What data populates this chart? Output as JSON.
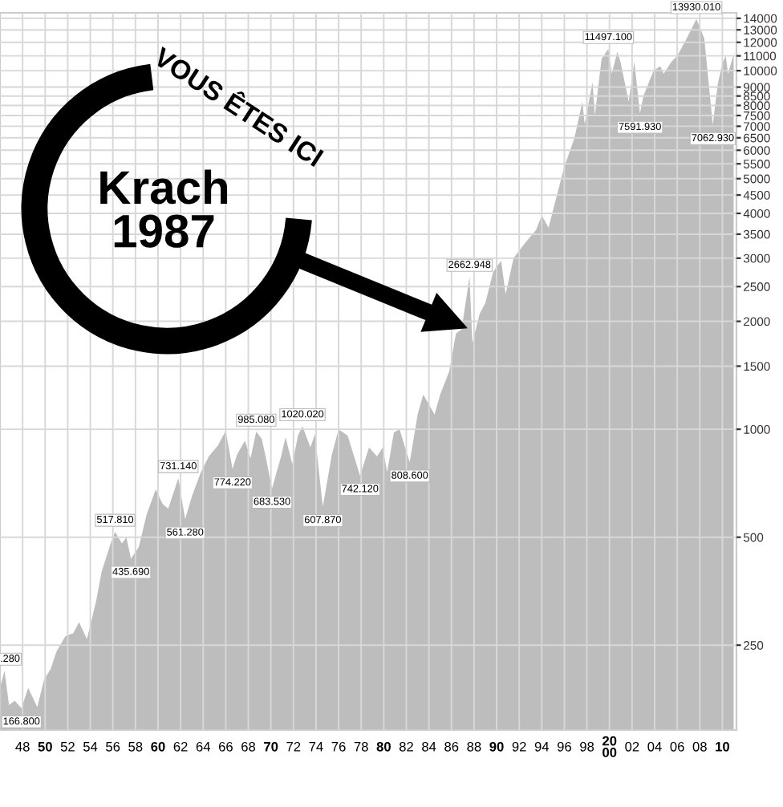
{
  "chart_data": {
    "type": "area",
    "log": "y",
    "grid": true,
    "x": [
      1946.0,
      1946.4,
      1946.8,
      1947.3,
      1947.9,
      1948.5,
      1949.3,
      1949.9,
      1950.5,
      1951.0,
      1951.8,
      1952.5,
      1953.0,
      1953.7,
      1954.5,
      1955.0,
      1955.8,
      1956.2,
      1956.8,
      1957.2,
      1957.6,
      1958.3,
      1959.0,
      1959.8,
      1960.4,
      1960.9,
      1961.8,
      1962.4,
      1963.0,
      1963.8,
      1964.5,
      1965.3,
      1966.0,
      1966.6,
      1967.0,
      1967.7,
      1968.2,
      1968.7,
      1969.2,
      1969.6,
      1970.1,
      1970.9,
      1971.3,
      1971.9,
      1972.4,
      1972.8,
      1973.5,
      1973.9,
      1974.6,
      1975.4,
      1976.0,
      1976.8,
      1977.9,
      1978.7,
      1979.4,
      1979.9,
      1980.3,
      1980.9,
      1981.4,
      1982.3,
      1983.0,
      1983.5,
      1984.5,
      1985.0,
      1985.8,
      1986.4,
      1986.9,
      1987.6,
      1987.85,
      1988.5,
      1989.0,
      1989.7,
      1990.4,
      1990.8,
      1991.5,
      1992.5,
      1993.5,
      1994.0,
      1994.6,
      1995.5,
      1996.0,
      1996.9,
      1997.6,
      1997.8,
      1998.5,
      1998.7,
      1999.3,
      1999.9,
      2000.2,
      2000.7,
      2001.0,
      2001.7,
      2002.2,
      2002.7,
      2003.0,
      2003.9,
      2004.5,
      2004.8,
      2005.5,
      2006.0,
      2006.9,
      2007.7,
      2008.4,
      2008.9,
      2009.15,
      2009.6,
      2010.0,
      2010.3,
      2010.5,
      2011.0
    ],
    "series": [
      {
        "color": "#bdbdbd",
        "values": [
          190,
          212.28,
          170,
          175,
          166.8,
          190,
          168,
          200,
          215,
          240,
          265,
          270,
          290,
          260,
          330,
          400,
          480,
          517.81,
          480,
          500,
          435.69,
          470,
          580,
          680,
          620,
          600,
          731.14,
          561.28,
          650,
          760,
          840,
          900,
          990,
          774.22,
          850,
          930,
          830,
          985.08,
          940,
          820,
          683.53,
          840,
          950,
          800,
          960,
          1020.02,
          890,
          970,
          607.87,
          850,
          1000,
          960,
          742.12,
          890,
          840,
          890,
          760,
          980,
          1000,
          808.6,
          1100,
          1250,
          1100,
          1250,
          1450,
          1850,
          1900,
          2662.948,
          1740,
          2100,
          2250,
          2750,
          2950,
          2380,
          3000,
          3300,
          3600,
          3950,
          3650,
          4700,
          5400,
          6500,
          8200,
          7100,
          9300,
          7500,
          10800,
          11497.1,
          9800,
          11300,
          10500,
          8200,
          10600,
          7591.93,
          8500,
          10000,
          10300,
          9800,
          10600,
          11000,
          12400,
          13930.01,
          12300,
          8500,
          7062.93,
          9200,
          10500,
          11000,
          9800,
          11100
        ]
      }
    ],
    "xlim": [
      1946,
      2011.25
    ],
    "ylim": [
      145,
      14500
    ],
    "xticks": [
      {
        "value": 1948,
        "label": "48"
      },
      {
        "value": 1950,
        "label": "50"
      },
      {
        "value": 1952,
        "label": "52"
      },
      {
        "value": 1954,
        "label": "54"
      },
      {
        "value": 1956,
        "label": "56"
      },
      {
        "value": 1958,
        "label": "58"
      },
      {
        "value": 1960,
        "label": "60"
      },
      {
        "value": 1962,
        "label": "62"
      },
      {
        "value": 1964,
        "label": "64"
      },
      {
        "value": 1966,
        "label": "66"
      },
      {
        "value": 1968,
        "label": "68"
      },
      {
        "value": 1970,
        "label": "70"
      },
      {
        "value": 1972,
        "label": "72"
      },
      {
        "value": 1974,
        "label": "74"
      },
      {
        "value": 1976,
        "label": "76"
      },
      {
        "value": 1978,
        "label": "78"
      },
      {
        "value": 1980,
        "label": "80"
      },
      {
        "value": 1982,
        "label": "82"
      },
      {
        "value": 1984,
        "label": "84"
      },
      {
        "value": 1986,
        "label": "86"
      },
      {
        "value": 1988,
        "label": "88"
      },
      {
        "value": 1990,
        "label": "90"
      },
      {
        "value": 1992,
        "label": "92"
      },
      {
        "value": 1994,
        "label": "94"
      },
      {
        "value": 1996,
        "label": "96"
      },
      {
        "value": 1998,
        "label": "98"
      },
      {
        "value": 2000,
        "label": "20\n00"
      },
      {
        "value": 2002,
        "label": "02"
      },
      {
        "value": 2004,
        "label": "04"
      },
      {
        "value": 2006,
        "label": "06"
      },
      {
        "value": 2008,
        "label": "08"
      },
      {
        "value": 2010,
        "label": "10"
      }
    ],
    "yticks": [
      250,
      500,
      1000,
      1500,
      2000,
      2500,
      3000,
      3500,
      4000,
      4500,
      5000,
      5500,
      6000,
      6500,
      7000,
      7500,
      8000,
      8500,
      9000,
      10000,
      11000,
      12000,
      13000,
      14000
    ],
    "annotations": [
      {
        "text": ".280",
        "x": 1946.4,
        "y": 212.28
      },
      {
        "text": "166.800",
        "x": 1947.9,
        "y": 166.8
      },
      {
        "text": "517.810",
        "x": 1956.2,
        "y": 517.81
      },
      {
        "text": "435.690",
        "x": 1957.6,
        "y": 435.69
      },
      {
        "text": "731.140",
        "x": 1961.8,
        "y": 731.14
      },
      {
        "text": "561.280",
        "x": 1962.4,
        "y": 561.28
      },
      {
        "text": "774.220",
        "x": 1966.6,
        "y": 774.22
      },
      {
        "text": "985.080",
        "x": 1968.7,
        "y": 985.08
      },
      {
        "text": "683.530",
        "x": 1970.1,
        "y": 683.53
      },
      {
        "text": "1020.020",
        "x": 1972.8,
        "y": 1020.02
      },
      {
        "text": "607.870",
        "x": 1974.6,
        "y": 607.87
      },
      {
        "text": "742.120",
        "x": 1977.9,
        "y": 742.12
      },
      {
        "text": "808.600",
        "x": 1982.3,
        "y": 808.6
      },
      {
        "text": "2662.948",
        "x": 1987.6,
        "y": 2662.948
      },
      {
        "text": "11497.100",
        "x": 1999.9,
        "y": 11497.1
      },
      {
        "text": "7591.930",
        "x": 2002.7,
        "y": 7591.93
      },
      {
        "text": "13930.010",
        "x": 2007.7,
        "y": 13930.01
      },
      {
        "text": "7062.930",
        "x": 2009.15,
        "y": 7062.93
      },
      "Krach\n1987",
      "VOUS ÊTES ICI"
    ]
  }
}
